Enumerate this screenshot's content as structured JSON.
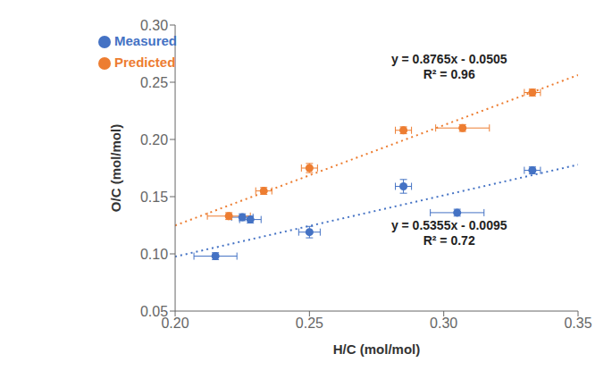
{
  "chart_data": {
    "type": "scatter",
    "xlabel": "H/C (mol/mol)",
    "ylabel": "O/C (mol/mol)",
    "xlim": [
      0.2,
      0.35
    ],
    "ylim": [
      0.05,
      0.3
    ],
    "xticks": [
      {
        "value": 0.2,
        "label": "0.20"
      },
      0.25,
      {
        "value": 0.3,
        "label": "0.30"
      },
      0.35
    ],
    "yticks": [
      0.05,
      {
        "value": 0.1,
        "label": "0.10"
      },
      0.15,
      {
        "value": 0.2,
        "label": "0.20"
      },
      0.25,
      {
        "value": 0.3,
        "label": "0.30"
      }
    ],
    "grid": false,
    "legend": "upper left",
    "series": [
      {
        "name": "Measured",
        "color": "#4472C4",
        "marker": "circle",
        "x": [
          0.215,
          0.225,
          0.228,
          0.25,
          0.285,
          0.305,
          0.333
        ],
        "values": [
          0.098,
          0.132,
          0.13,
          0.119,
          0.159,
          0.136,
          0.173
        ],
        "x_error": [
          0.008,
          0.004,
          0.004,
          0.004,
          0.003,
          0.01,
          0.003
        ],
        "y_error": [
          0.003,
          0.003,
          0.003,
          0.005,
          0.006,
          0.003,
          0.003
        ],
        "trendline": {
          "slope": 0.5355,
          "intercept": -0.0095,
          "line_style": "dotted"
        }
      },
      {
        "name": "Predicted",
        "color": "#ED7D31",
        "marker": "circle",
        "x": [
          0.22,
          0.233,
          0.25,
          0.285,
          0.307,
          0.333
        ],
        "values": [
          0.133,
          0.155,
          0.175,
          0.208,
          0.21,
          0.241
        ],
        "x_error": [
          0.008,
          0.003,
          0.003,
          0.003,
          0.01,
          0.003
        ],
        "y_error": [
          0.003,
          0.003,
          0.004,
          0.003,
          0.003,
          0.003
        ],
        "trendline": {
          "slope": 0.8765,
          "intercept": -0.0505,
          "line_style": "dotted"
        }
      }
    ],
    "annotations": [
      {
        "text": "y = 0.8765x - 0.0505",
        "x": 0.302,
        "y": 0.27
      },
      {
        "text": "R² = 0.96",
        "x": 0.302,
        "y": 0.257
      },
      {
        "text": "y = 0.5355x - 0.0095",
        "x": 0.302,
        "y": 0.125
      },
      {
        "text": "R² = 0.72",
        "x": 0.302,
        "y": 0.112
      }
    ]
  }
}
